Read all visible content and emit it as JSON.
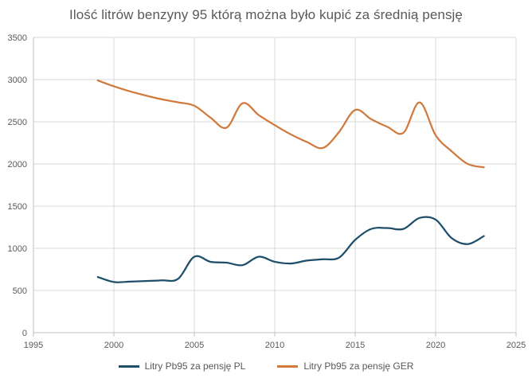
{
  "chart_data": {
    "type": "line",
    "title": "Ilość litrów benzyny 95 którą można było kupić za średnią pensję",
    "xlabel": "",
    "ylabel": "",
    "xlim": [
      1995,
      2025
    ],
    "ylim": [
      0,
      3500
    ],
    "x_ticks": [
      1995,
      2000,
      2005,
      2010,
      2015,
      2020,
      2025
    ],
    "y_ticks": [
      0,
      500,
      1000,
      1500,
      2000,
      2500,
      3000,
      3500
    ],
    "grid": true,
    "legend_position": "bottom",
    "x": [
      1999,
      2000,
      2001,
      2002,
      2003,
      2004,
      2005,
      2006,
      2007,
      2008,
      2009,
      2010,
      2011,
      2012,
      2013,
      2014,
      2015,
      2016,
      2017,
      2018,
      2019,
      2020,
      2021,
      2022,
      2023
    ],
    "series": [
      {
        "name": "Litry Pb95 za pensję PL",
        "color": "#1f4e6b",
        "values": [
          660,
          600,
          605,
          612,
          620,
          640,
          900,
          840,
          830,
          800,
          900,
          840,
          820,
          855,
          870,
          890,
          1100,
          1230,
          1240,
          1230,
          1360,
          1340,
          1120,
          1050,
          1145
        ]
      },
      {
        "name": "Litry Pb95 za pensję GER",
        "color": "#d07a3d",
        "values": [
          2990,
          2920,
          2860,
          2810,
          2765,
          2730,
          2690,
          2550,
          2430,
          2720,
          2580,
          2460,
          2350,
          2260,
          2190,
          2380,
          2640,
          2530,
          2440,
          2370,
          2730,
          2340,
          2150,
          2000,
          1960
        ]
      }
    ]
  }
}
